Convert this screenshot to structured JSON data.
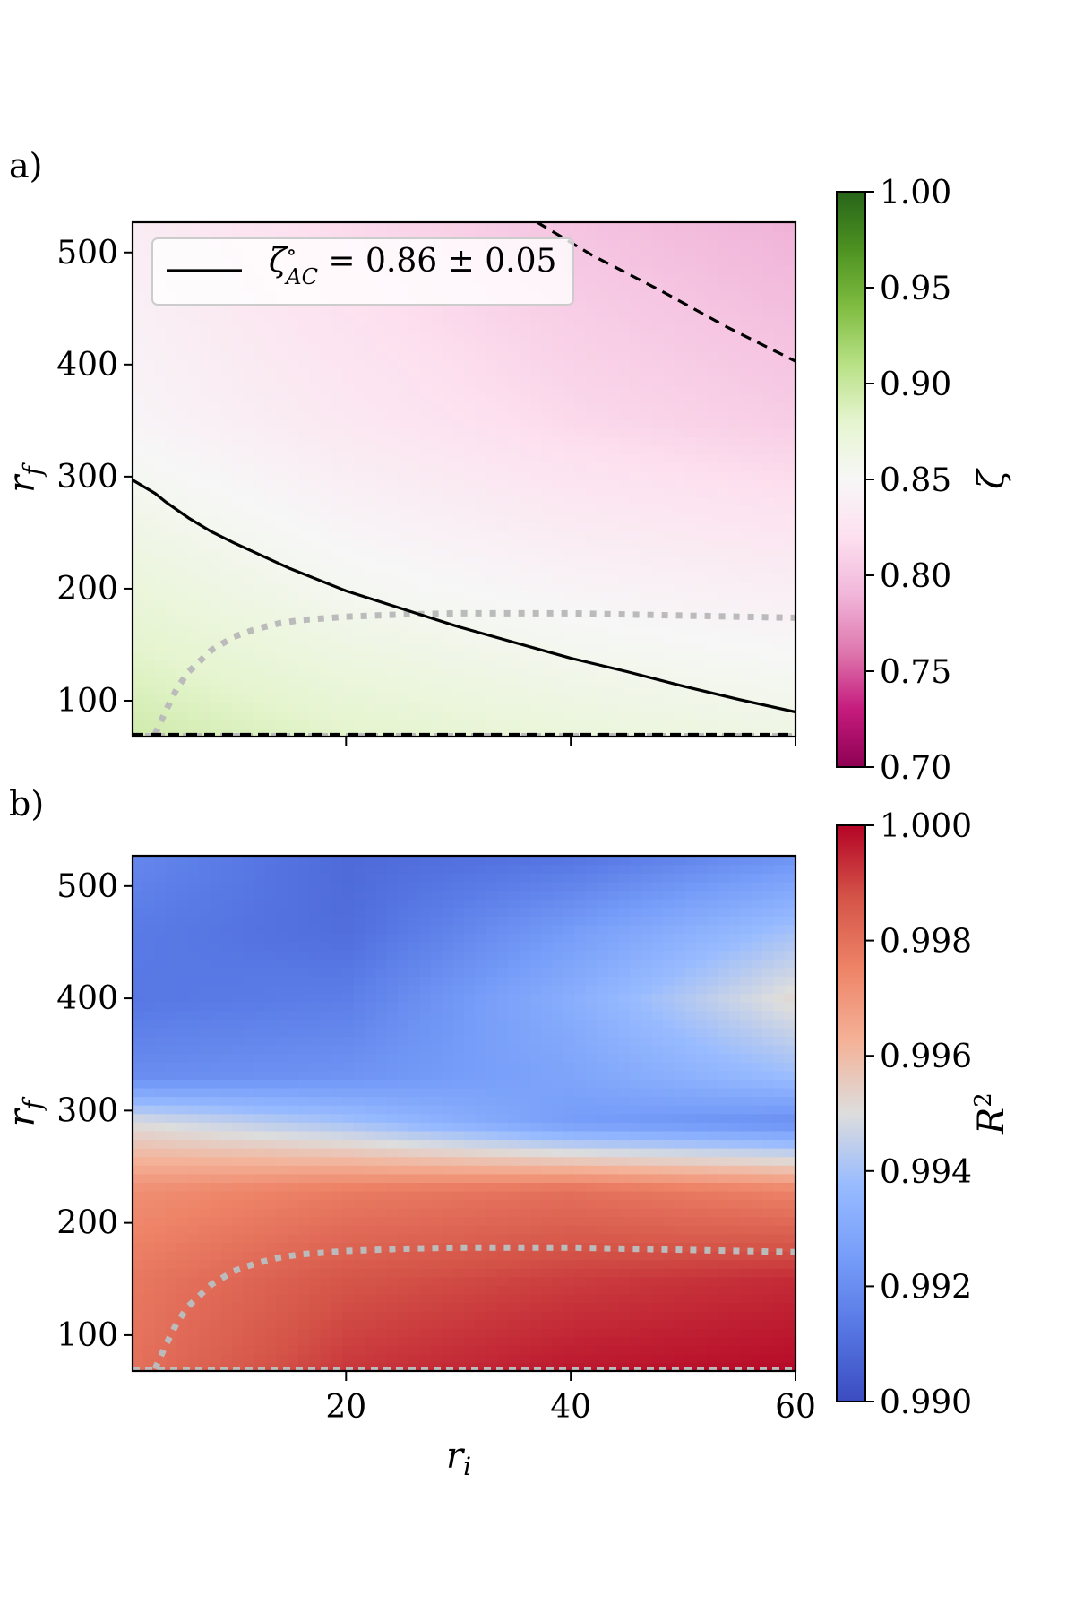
{
  "chart_data": [
    {
      "panel": "a)",
      "type": "heatmap",
      "xlim": [
        1,
        60
      ],
      "ylim": [
        68,
        527
      ],
      "xticks": [
        20,
        40,
        60
      ],
      "show_xtick_labels": false,
      "yticks": [
        100,
        200,
        300,
        400,
        500
      ],
      "ylabel_tex": "r",
      "ylabel_sub": "f",
      "colormap": "PiYG",
      "colorbar": {
        "label": "ζ",
        "range": [
          0.7,
          1.0
        ],
        "tick_labels": [
          "1.00",
          "0.95",
          "0.90",
          "0.85",
          "0.80",
          "0.75",
          "0.70"
        ],
        "tick_values": [
          1.0,
          0.95,
          0.9,
          0.85,
          0.8,
          0.75,
          0.7
        ]
      },
      "field_samples": {
        "r_i": [
          1,
          20,
          40,
          60
        ],
        "r_f": [
          68,
          200,
          350,
          527
        ],
        "zeta": [
          [
            0.895,
            0.882,
            0.872,
            0.865
          ],
          [
            0.872,
            0.855,
            0.845,
            0.838
          ],
          [
            0.846,
            0.83,
            0.815,
            0.806
          ],
          [
            0.836,
            0.816,
            0.8,
            0.788
          ]
        ]
      },
      "legend": {
        "position": "upper left",
        "label_main": "ζ",
        "label_sup": "∘",
        "label_sub": "AC",
        "label_rest": " = 0.86 ± 0.05"
      },
      "contours": [
        {
          "style": "solid",
          "color": "#000000",
          "name": "zeta_AC_center",
          "x": [
            1,
            2,
            3,
            4,
            6,
            8,
            10,
            15,
            20,
            25,
            30,
            35,
            40,
            45,
            50,
            55,
            60
          ],
          "y": [
            297,
            291,
            285,
            277,
            263,
            251,
            241,
            218,
            198,
            182,
            166,
            152,
            138,
            126,
            113,
            101,
            90
          ]
        },
        {
          "style": "dashed",
          "color": "#000000",
          "name": "zeta_AC_lower",
          "x": [
            37,
            42,
            48,
            54,
            60
          ],
          "y": [
            527,
            497,
            466,
            433,
            403
          ]
        },
        {
          "style": "dashed",
          "color": "#000000",
          "name": "zeta_AC_upper",
          "x": [
            1,
            60
          ],
          "y": [
            70,
            70
          ]
        }
      ],
      "gray_curves": [
        {
          "style": "dotted",
          "color": "#bbbbbb",
          "x": [
            3,
            4,
            5,
            6,
            8,
            10,
            12,
            14,
            16,
            20,
            25,
            30,
            35,
            40,
            45,
            50,
            55,
            60
          ],
          "y": [
            70,
            92,
            112,
            126,
            145,
            157,
            164,
            169,
            172,
            175,
            177,
            178,
            178,
            178,
            177,
            176,
            175,
            174
          ]
        },
        {
          "style": "dashed",
          "color": "#bbbbbb",
          "x": [
            1,
            60
          ],
          "y": [
            70,
            70
          ]
        }
      ]
    },
    {
      "panel": "b)",
      "type": "heatmap",
      "xlim": [
        1,
        60
      ],
      "ylim": [
        68,
        527
      ],
      "xticks": [
        20,
        40,
        60
      ],
      "xtick_labels": [
        "20",
        "40",
        "60"
      ],
      "yticks": [
        100,
        200,
        300,
        400,
        500
      ],
      "xlabel_tex": "r",
      "xlabel_sub": "i",
      "ylabel_tex": "r",
      "ylabel_sub": "f",
      "colormap": "coolwarm",
      "colorbar": {
        "label": "R",
        "label_sup": "2",
        "range": [
          0.99,
          1.0
        ],
        "tick_labels": [
          "1.000",
          "0.998",
          "0.996",
          "0.994",
          "0.992",
          "0.990"
        ],
        "tick_values": [
          1.0,
          0.998,
          0.996,
          0.994,
          0.992,
          0.99
        ]
      },
      "field_samples": {
        "r_f": [
          68,
          150,
          230,
          290,
          330,
          400,
          460,
          527
        ],
        "r_i": [
          1,
          20,
          40,
          60
        ],
        "R2": [
          [
            0.998,
            0.9992,
            0.9997,
            0.9999
          ],
          [
            0.9978,
            0.9987,
            0.9991,
            0.9994
          ],
          [
            0.9972,
            0.9977,
            0.998,
            0.9975
          ],
          [
            0.995,
            0.994,
            0.9925,
            0.992
          ],
          [
            0.992,
            0.9922,
            0.9928,
            0.9938
          ],
          [
            0.9913,
            0.9915,
            0.9932,
            0.9952
          ],
          [
            0.9914,
            0.991,
            0.9925,
            0.994
          ],
          [
            0.9918,
            0.9909,
            0.9912,
            0.9922
          ]
        ]
      },
      "gray_curves": [
        {
          "style": "dotted",
          "color": "#bbbbbb",
          "x": [
            3,
            4,
            5,
            6,
            8,
            10,
            12,
            14,
            16,
            20,
            25,
            30,
            35,
            40,
            45,
            50,
            55,
            60
          ],
          "y": [
            70,
            92,
            112,
            126,
            145,
            157,
            164,
            169,
            172,
            175,
            177,
            178,
            178,
            178,
            177,
            176,
            175,
            174
          ]
        },
        {
          "style": "dashed",
          "color": "#bbbbbb",
          "x": [
            1,
            60
          ],
          "y": [
            70,
            70
          ]
        }
      ]
    }
  ]
}
